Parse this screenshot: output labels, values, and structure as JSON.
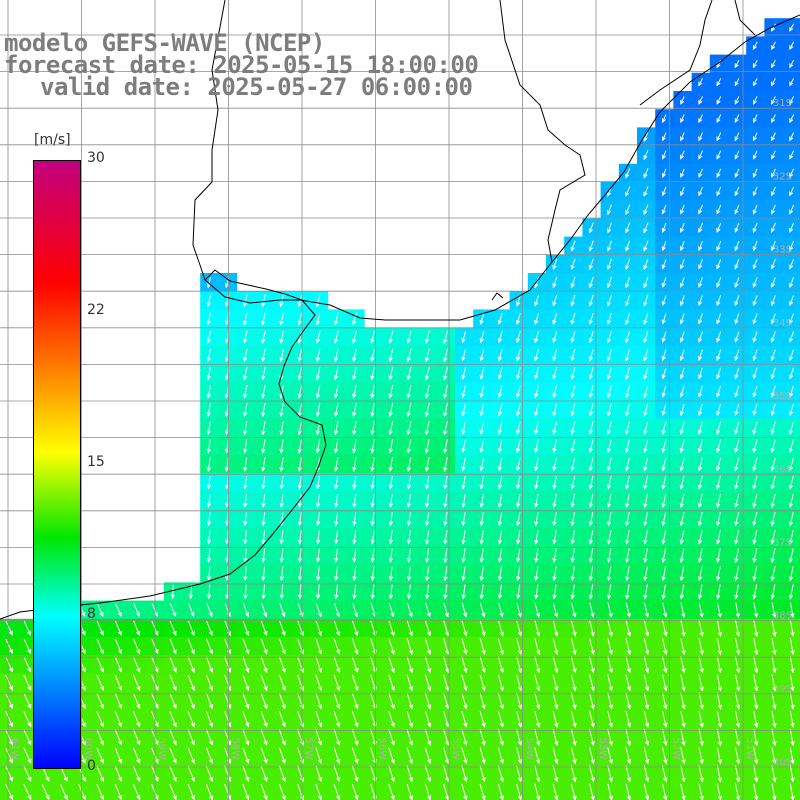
{
  "header": {
    "line1": "modelo GEFS-WAVE (NCEP)",
    "line2": "forecast date: 2025-05-15 18:00:00",
    "line3": "valid date: 2025-05-27 06:00:00"
  },
  "colorbar": {
    "unit": "[m/s]",
    "ticks": [
      {
        "label": "30",
        "value": 30
      },
      {
        "label": "22",
        "value": 22
      },
      {
        "label": "15",
        "value": 15
      },
      {
        "label": "8",
        "value": 8
      },
      {
        "label": "0",
        "value": 0
      }
    ],
    "vmin": 0,
    "vmax": 30
  },
  "map": {
    "lat_labels": [
      "31S",
      "32S",
      "33S",
      "34S",
      "35S",
      "36S",
      "37S",
      "38S",
      "39S",
      "40S"
    ],
    "lon_labels": [
      "61W",
      "60W",
      "59W",
      "58W",
      "57W",
      "56W",
      "55W",
      "54W",
      "53W",
      "52W",
      "51W"
    ],
    "colors": {
      "land": "#ffffff",
      "coast": "#000000",
      "grid": "#8c8c8c",
      "arrow": "#ffffff"
    }
  }
}
